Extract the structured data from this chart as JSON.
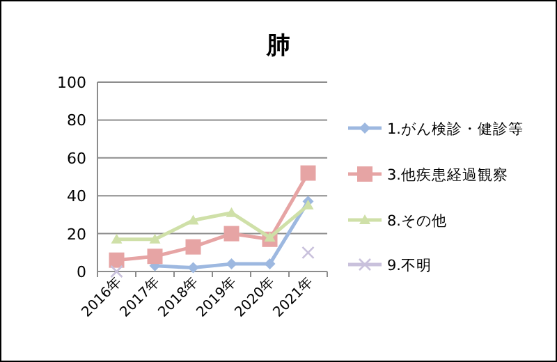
{
  "chart_data": {
    "type": "line",
    "title": "肺",
    "categories": [
      "2016年",
      "2017年",
      "2018年",
      "2019年",
      "2020年",
      "2021年"
    ],
    "series": [
      {
        "name": "1.がん検診・健診等",
        "color": "#9db8e0",
        "marker": "diamond",
        "values": [
          null,
          3,
          2,
          4,
          4,
          37
        ]
      },
      {
        "name": "3.他疾患経過観察",
        "color": "#e6a4a4",
        "marker": "square",
        "values": [
          6,
          8,
          13,
          20,
          17,
          52
        ]
      },
      {
        "name": "8.その他",
        "color": "#cfe0a8",
        "marker": "triangle",
        "values": [
          17,
          17,
          27,
          31,
          18,
          35
        ]
      },
      {
        "name": "9.不明",
        "color": "#c9c1dc",
        "marker": "cross",
        "values": [
          0,
          null,
          null,
          null,
          null,
          10
        ]
      }
    ],
    "ylim": [
      0,
      100
    ],
    "yticks": [
      0,
      20,
      40,
      60,
      80,
      100
    ],
    "grid": "y",
    "legend": "right"
  }
}
